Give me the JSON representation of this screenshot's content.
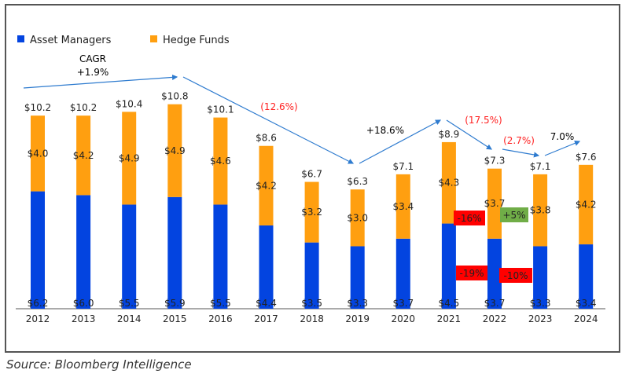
{
  "chart_data": {
    "type": "bar",
    "stacked": true,
    "title": "",
    "xlabel": "",
    "ylabel": "",
    "categories": [
      "2012",
      "2013",
      "2014",
      "2015",
      "2016",
      "2017",
      "2018",
      "2019",
      "2020",
      "2021",
      "2022",
      "2023",
      "2024"
    ],
    "series": [
      {
        "name": "Asset Managers",
        "color": "#0344e0",
        "values": [
          6.2,
          6.0,
          5.5,
          5.9,
          5.5,
          4.4,
          3.5,
          3.3,
          3.7,
          4.5,
          3.7,
          3.3,
          3.4
        ]
      },
      {
        "name": "Hedge Funds",
        "color": "#ff9f10",
        "values": [
          4.0,
          4.2,
          4.9,
          4.9,
          4.6,
          4.2,
          3.2,
          3.0,
          3.4,
          4.3,
          3.7,
          3.8,
          4.2
        ]
      }
    ],
    "totals": [
      10.2,
      10.2,
      10.4,
      10.8,
      10.1,
      8.6,
      6.7,
      6.3,
      7.1,
      8.9,
      7.3,
      7.1,
      7.6
    ],
    "total_labels": [
      "$10.2",
      "$10.2",
      "$10.4",
      "$10.8",
      "$10.1",
      "$8.6",
      "$6.7",
      "$6.3",
      "$7.1",
      "$8.9",
      "$7.3",
      "$7.1",
      "$7.6"
    ],
    "am_labels": [
      "$6.2",
      "$6.0",
      "$5.5",
      "$5.9",
      "$5.5",
      "$4.4",
      "$3.5",
      "$3.3",
      "$3.7",
      "$4.5",
      "$3.7",
      "$3.3",
      "$3.4"
    ],
    "hf_labels": [
      "$4.0",
      "$4.2",
      "$4.9",
      "$4.9",
      "$4.6",
      "$4.2",
      "$3.2",
      "$3.0",
      "$3.4",
      "$4.3",
      "$3.7",
      "$3.8",
      "$4.2"
    ],
    "legend": "top-left",
    "grid": false,
    "ylim": [
      0,
      11.5
    ],
    "trend_annotations": [
      {
        "from": "2012",
        "to": "2015",
        "label": "CAGR\n+1.9%",
        "color": "#000000"
      },
      {
        "from": "2015",
        "to": "2019",
        "label": "(12.6%)",
        "color": "#ff2020"
      },
      {
        "from": "2019",
        "to": "2021",
        "label": "+18.6%",
        "color": "#000000"
      },
      {
        "from": "2021",
        "to": "2022",
        "label": "(17.5%)",
        "color": "#ff2020"
      },
      {
        "from": "2022",
        "to": "2023",
        "label": "(2.7%)",
        "color": "#ff2020"
      },
      {
        "from": "2023",
        "to": "2024",
        "label": "7.0%",
        "color": "#000000"
      }
    ],
    "change_badges": [
      {
        "label": "-16%",
        "color": "#ff0000",
        "near": "2021",
        "series": "Hedge Funds"
      },
      {
        "label": "+5%",
        "color": "#70ad47",
        "near": "2022",
        "series": "Hedge Funds"
      },
      {
        "label": "-19%",
        "color": "#ff0000",
        "near": "2021",
        "series": "Asset Managers"
      },
      {
        "label": "-10%",
        "color": "#ff0000",
        "near": "2022",
        "series": "Asset Managers"
      }
    ]
  },
  "source": "Source: Bloomberg Intelligence"
}
